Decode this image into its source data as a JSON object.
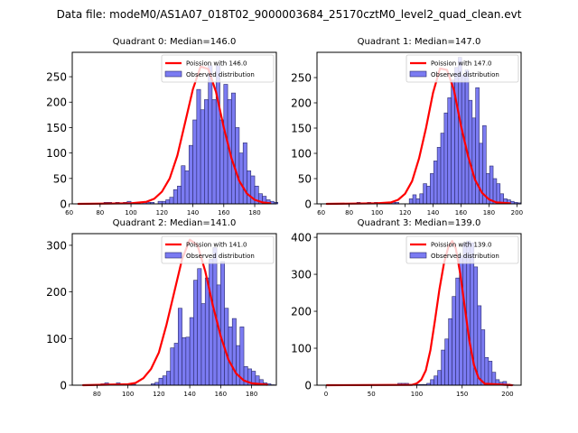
{
  "figure": {
    "suptitle": "Data file: modeM0/AS1A07_018T02_9000003684_25170cztM0_level2_quad_clean.evt"
  },
  "colors": {
    "bar_fill": "#7b7bf2",
    "bar_edge": "#2a2a6a",
    "poisson_line": "#ff0000",
    "axes": "#000000"
  },
  "chart_data": [
    {
      "type": "bar",
      "title": "Quadrant 0: Median=146.0",
      "median": 146.0,
      "legend": [
        "Poission with 146.0",
        "Observed distribution"
      ],
      "legend_position": "top-right",
      "xlim": [
        62,
        194
      ],
      "ylim": [
        0,
        298
      ],
      "xticks": [
        60,
        80,
        100,
        120,
        140,
        160,
        180
      ],
      "yticks": [
        0,
        50,
        100,
        150,
        200,
        250
      ],
      "bin_width": 2.5,
      "bins_start": 65,
      "counts": [
        0,
        0,
        0,
        0,
        0,
        0,
        0,
        3,
        3,
        0,
        3,
        0,
        3,
        5,
        0,
        0,
        0,
        3,
        3,
        3,
        0,
        5,
        5,
        8,
        13,
        28,
        35,
        75,
        65,
        115,
        165,
        225,
        185,
        205,
        272,
        205,
        272,
        165,
        235,
        205,
        218,
        150,
        100,
        120,
        65,
        55,
        35,
        20,
        15,
        8,
        5,
        3
      ],
      "poisson_curve": {
        "x": [
          66,
          100,
          110,
          115,
          120,
          125,
          130,
          135,
          140,
          145,
          150,
          155,
          160,
          165,
          170,
          175,
          180,
          185,
          190
        ],
        "y": [
          0,
          1,
          4,
          10,
          24,
          50,
          95,
          160,
          225,
          270,
          265,
          220,
          150,
          90,
          45,
          20,
          8,
          3,
          1
        ]
      }
    },
    {
      "type": "bar",
      "title": "Quadrant 1: Median=147.0",
      "median": 147.0,
      "legend": [
        "Poission with 147.0",
        "Observed distribution"
      ],
      "legend_position": "top-right",
      "xlim": [
        57,
        203
      ],
      "ylim": [
        0,
        300
      ],
      "xticks": [
        60,
        80,
        100,
        120,
        140,
        160,
        180,
        200
      ],
      "yticks": [
        0,
        50,
        100,
        150,
        200,
        250
      ],
      "bin_width": 2.5,
      "bins_start": 63,
      "counts": [
        0,
        0,
        0,
        0,
        0,
        0,
        0,
        0,
        0,
        3,
        0,
        0,
        3,
        0,
        3,
        0,
        3,
        0,
        0,
        3,
        3,
        0,
        0,
        0,
        10,
        18,
        10,
        20,
        40,
        35,
        60,
        85,
        112,
        140,
        180,
        210,
        245,
        270,
        290,
        255,
        265,
        205,
        170,
        230,
        120,
        155,
        60,
        75,
        50,
        40,
        20,
        10,
        8,
        5,
        3,
        2
      ],
      "poisson_curve": {
        "x": [
          64,
          100,
          110,
          115,
          120,
          125,
          130,
          135,
          140,
          145,
          150,
          155,
          160,
          165,
          170,
          175,
          180,
          185,
          195
        ],
        "y": [
          0,
          1,
          3,
          8,
          20,
          45,
          90,
          150,
          220,
          268,
          265,
          225,
          155,
          95,
          48,
          22,
          9,
          3,
          1
        ]
      }
    },
    {
      "type": "bar",
      "title": "Quadrant 2: Median=141.0",
      "median": 141.0,
      "legend": [
        "Poission with 141.0",
        "Observed distribution"
      ],
      "legend_position": "top-right",
      "xlim": [
        64,
        196
      ],
      "ylim": [
        0,
        325
      ],
      "xticks": [
        80,
        100,
        120,
        140,
        160,
        180
      ],
      "yticks": [
        0,
        100,
        200,
        300
      ],
      "bin_width": 2.5,
      "bins_start": 70,
      "counts": [
        0,
        0,
        0,
        0,
        0,
        3,
        5,
        0,
        0,
        5,
        0,
        2,
        3,
        2,
        0,
        0,
        0,
        0,
        3,
        6,
        15,
        20,
        30,
        80,
        90,
        165,
        102,
        103,
        145,
        225,
        250,
        175,
        230,
        270,
        295,
        215,
        265,
        165,
        125,
        143,
        85,
        125,
        40,
        35,
        30,
        20,
        12,
        5,
        3,
        1
      ],
      "poisson_curve": {
        "x": [
          71,
          100,
          105,
          110,
          115,
          120,
          125,
          130,
          135,
          140,
          145,
          150,
          155,
          160,
          165,
          170,
          175,
          180,
          190
        ],
        "y": [
          0,
          2,
          5,
          15,
          35,
          70,
          130,
          200,
          270,
          312,
          300,
          245,
          170,
          105,
          55,
          25,
          10,
          4,
          1
        ]
      }
    },
    {
      "type": "bar",
      "title": "Quadrant 3: Median=139.0",
      "median": 139.0,
      "legend": [
        "Poission with 139.0",
        "Observed distribution"
      ],
      "legend_position": "top-right",
      "xlim": [
        -10,
        215
      ],
      "ylim": [
        0,
        410
      ],
      "xticks": [
        0,
        50,
        100,
        150,
        200
      ],
      "yticks": [
        0,
        100,
        200,
        300,
        400
      ],
      "bin_width": 4,
      "bins_start": 79,
      "counts": [
        5,
        5,
        5,
        2,
        2,
        2,
        2,
        2,
        5,
        15,
        25,
        40,
        95,
        125,
        180,
        240,
        290,
        350,
        385,
        390,
        385,
        320,
        215,
        150,
        75,
        65,
        35,
        15,
        8,
        10,
        3,
        1
      ],
      "poisson_curve": {
        "x": [
          1,
          95,
          100,
          105,
          110,
          115,
          120,
          125,
          130,
          135,
          139,
          143,
          148,
          153,
          158,
          163,
          168,
          175,
          205
        ],
        "y": [
          0,
          1,
          5,
          15,
          40,
          95,
          175,
          260,
          330,
          375,
          390,
          370,
          300,
          210,
          120,
          55,
          20,
          4,
          0
        ]
      }
    }
  ]
}
